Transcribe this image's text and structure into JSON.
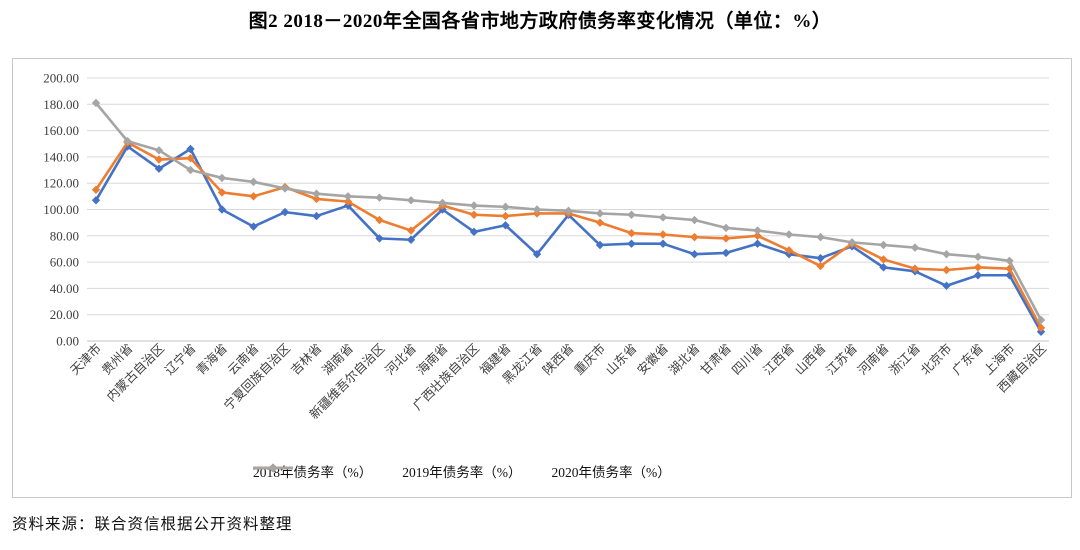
{
  "figure": {
    "title": "图2  2018－2020年全国各省市地方政府债务率变化情况（单位：%）",
    "source_note": "资料来源：联合资信根据公开资料整理"
  },
  "chart_data": {
    "type": "line",
    "title": "图2  2018－2020年全国各省市地方政府债务率变化情况（单位：%）",
    "xlabel": "",
    "ylabel": "",
    "ylim": [
      0,
      200
    ],
    "ytick_step": 20,
    "ytick_format": "two-decimals",
    "grid": "horizontal",
    "legend_position": "bottom",
    "marker": "diamond",
    "categories": [
      "天津市",
      "贵州省",
      "内蒙古自治区",
      "辽宁省",
      "青海省",
      "云南省",
      "宁夏回族自治区",
      "吉林省",
      "湖南省",
      "新疆维吾尔自治区",
      "河北省",
      "海南省",
      "广西壮族自治区",
      "福建省",
      "黑龙江省",
      "陕西省",
      "重庆市",
      "山东省",
      "安徽省",
      "湖北省",
      "甘肃省",
      "四川省",
      "江西省",
      "山西省",
      "江苏省",
      "河南省",
      "浙江省",
      "北京市",
      "广东省",
      "上海市",
      "西藏自治区"
    ],
    "series": [
      {
        "name": "2018年债务率（%）",
        "color": "#4472C4",
        "values": [
          107,
          148,
          131,
          146,
          100,
          87,
          98,
          95,
          103,
          78,
          77,
          100,
          83,
          88,
          66,
          96,
          73,
          74,
          74,
          66,
          67,
          74,
          66,
          63,
          72,
          56,
          53,
          42,
          50,
          50,
          7
        ]
      },
      {
        "name": "2019年债务率（%）",
        "color": "#ED7D31",
        "values": [
          115,
          151,
          138,
          139,
          113,
          110,
          117,
          108,
          106,
          92,
          84,
          103,
          96,
          95,
          97,
          97,
          90,
          82,
          81,
          79,
          78,
          80,
          69,
          57,
          74,
          62,
          55,
          54,
          56,
          55,
          10
        ]
      },
      {
        "name": "2020年债务率（%）",
        "color": "#A5A5A5",
        "values": [
          181,
          152,
          145,
          130,
          124,
          121,
          116,
          112,
          110,
          109,
          107,
          105,
          103,
          102,
          100,
          99,
          97,
          96,
          94,
          92,
          86,
          84,
          81,
          79,
          75,
          73,
          71,
          66,
          64,
          61,
          16
        ]
      }
    ],
    "axis_colors": {
      "gridline": "#d9d9d9",
      "axis_line": "#c0c0c0",
      "tick_label": "#404040"
    }
  }
}
